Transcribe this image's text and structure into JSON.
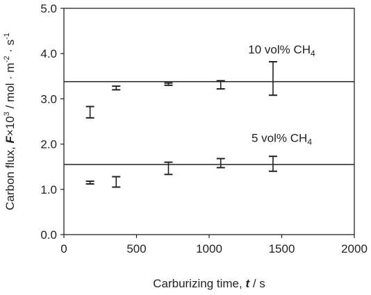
{
  "chart_data": {
    "type": "scatter",
    "xlabel": {
      "prefix": "Carburizing time, ",
      "var": "t",
      "suffix": " / s"
    },
    "ylabel": {
      "prefix": "Carbon flux, ",
      "var": "F",
      "rest": "×10",
      "sup1": "3",
      "rest2": " / mol · m",
      "sup2": "-2",
      "rest3": " · s",
      "sup3": "-1"
    },
    "xlim": [
      0,
      2000
    ],
    "ylim": [
      0,
      5
    ],
    "x_ticks": [
      0,
      500,
      1000,
      1500,
      2000
    ],
    "x_tick_labels": [
      "0",
      "500",
      "1000",
      "1500",
      "2000"
    ],
    "y_ticks": [
      0,
      1,
      2,
      3,
      4,
      5
    ],
    "y_tick_labels": [
      "0.0",
      "1.0",
      "2.0",
      "3.0",
      "4.0",
      "5.0"
    ],
    "series": [
      {
        "name": "10 vol% CH4",
        "label": {
          "main": "10 vol% CH",
          "sub": "4",
          "x": 1500,
          "y": 4.0
        },
        "fit_line": 3.38,
        "points": [
          {
            "x": 180,
            "low": 2.58,
            "high": 2.83
          },
          {
            "x": 360,
            "low": 3.2,
            "high": 3.28
          },
          {
            "x": 720,
            "low": 3.3,
            "high": 3.35
          },
          {
            "x": 1080,
            "low": 3.22,
            "high": 3.4
          },
          {
            "x": 1440,
            "low": 3.08,
            "high": 3.82
          }
        ]
      },
      {
        "name": "5 vol% CH4",
        "label": {
          "main": "5 vol% CH",
          "sub": "4",
          "x": 1500,
          "y": 2.05
        },
        "fit_line": 1.55,
        "points": [
          {
            "x": 180,
            "low": 1.12,
            "high": 1.18
          },
          {
            "x": 360,
            "low": 1.05,
            "high": 1.28
          },
          {
            "x": 720,
            "low": 1.33,
            "high": 1.6
          },
          {
            "x": 1080,
            "low": 1.48,
            "high": 1.68
          },
          {
            "x": 1440,
            "low": 1.4,
            "high": 1.73
          }
        ]
      }
    ]
  }
}
